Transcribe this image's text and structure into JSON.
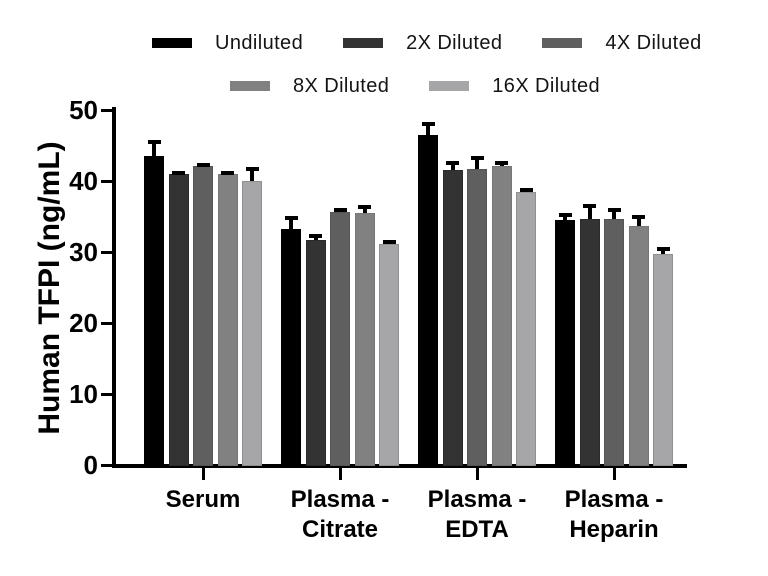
{
  "chart_data": {
    "type": "bar",
    "title": "",
    "ylabel": "Human TFPI (ng/mL)",
    "xlabel": "",
    "ylim": [
      0,
      50
    ],
    "yticks": [
      0,
      10,
      20,
      30,
      40,
      50
    ],
    "grid": false,
    "legend_position": "top",
    "legend_rows": [
      [
        "Undiluted",
        "2X Diluted",
        "4X Diluted"
      ],
      [
        "8X Diluted",
        "16X Diluted"
      ]
    ],
    "categories": [
      "Serum",
      "Plasma - Citrate",
      "Plasma - EDTA",
      "Plasma - Heparin"
    ],
    "category_label_lines": [
      [
        "Serum"
      ],
      [
        "Plasma -",
        "Citrate"
      ],
      [
        "Plasma -",
        "EDTA"
      ],
      [
        "Plasma -",
        "Heparin"
      ]
    ],
    "series": [
      {
        "name": "Undiluted",
        "color": "#000000",
        "edge": "#000000",
        "values": [
          43.7,
          33.4,
          46.6,
          34.7
        ],
        "errors_plus": [
          2.2,
          1.8,
          1.8,
          1.0
        ]
      },
      {
        "name": "2X Diluted",
        "color": "#333333",
        "edge": "#2b2b2b",
        "values": [
          41.1,
          31.9,
          41.7,
          34.8
        ],
        "errors_plus": [
          0.5,
          0.8,
          1.3,
          2.1
        ]
      },
      {
        "name": "4X Diluted",
        "color": "#5f5f5f",
        "edge": "#555555",
        "values": [
          42.2,
          35.8,
          41.9,
          34.8
        ],
        "errors_plus": [
          0.5,
          0.6,
          1.7,
          1.6
        ]
      },
      {
        "name": "8X Diluted",
        "color": "#818181",
        "edge": "#767676",
        "values": [
          41.1,
          35.7,
          42.3,
          33.8
        ],
        "errors_plus": [
          0.5,
          1.0,
          0.7,
          1.5
        ]
      },
      {
        "name": "16X Diluted",
        "color": "#a6a6a9",
        "edge": "#8f8f92",
        "values": [
          40.2,
          31.2,
          38.6,
          29.8
        ],
        "errors_plus": [
          1.9,
          0.7,
          0.5,
          1.1
        ]
      }
    ],
    "error_bar_color": "#000000",
    "axis_color": "#000000",
    "background": "#ffffff"
  }
}
